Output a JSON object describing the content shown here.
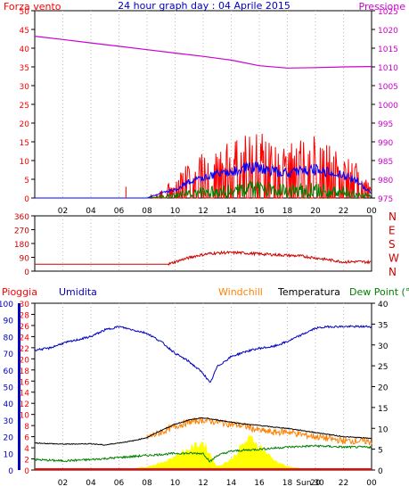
{
  "title": "24 hour graph day : 04 Aprile 2015",
  "colors": {
    "wind": "#ff0000",
    "gust": "#ff0000",
    "avgwind": "#0000ff",
    "windgreen": "#008000",
    "pressure": "#cc00cc",
    "direction": "#cc0000",
    "rain": "#ff0000",
    "humidity": "#0000c0",
    "windchill": "#ff8000",
    "temperature": "#000000",
    "dewpoint": "#008000",
    "solar": "#ffff00",
    "frame": "#000000",
    "grid": "#bbbbbb",
    "rainbar": "#ff0000"
  },
  "time_ticks": [
    "02",
    "04",
    "06",
    "08",
    "10",
    "12",
    "14",
    "16",
    "18",
    "20",
    "22",
    "00"
  ],
  "panel1": {
    "left_label": "Forza vento",
    "right_label": "Pressione",
    "left_ticks": [
      "0",
      "5",
      "10",
      "15",
      "20",
      "25",
      "30",
      "35",
      "40",
      "45",
      "50"
    ],
    "right_ticks": [
      "975",
      "980",
      "985",
      "990",
      "995",
      "1000",
      "1005",
      "1010",
      "1015",
      "1020",
      "1025"
    ]
  },
  "panel2": {
    "left_ticks": [
      "0",
      "90",
      "180",
      "270",
      "360"
    ],
    "right_labels": [
      "N",
      "W",
      "S",
      "E",
      "N"
    ]
  },
  "panel3": {
    "rain_label": "Pioggia",
    "humidity_label": "Umidita",
    "windchill_label": "Windchill",
    "temperature_label": "Temperatura",
    "dewpoint_label": "Dew Point (°C",
    "rain_ticks": [
      "0",
      "2",
      "4",
      "6",
      "8",
      "10",
      "12",
      "14",
      "16",
      "18",
      "20",
      "22",
      "24",
      "26",
      "28",
      "30"
    ],
    "humidity_ticks": [
      "0",
      "10",
      "20",
      "30",
      "40",
      "50",
      "60",
      "70",
      "80",
      "90",
      "100"
    ],
    "temp_ticks": [
      "0",
      "5",
      "10",
      "15",
      "20",
      "25",
      "30",
      "35",
      "40"
    ],
    "sun_marker": "Sun 30"
  },
  "chart_data": [
    {
      "type": "line",
      "title": "24 hour graph day : 04 Aprile 2015",
      "x_unit": "hour",
      "xlim": [
        0,
        24
      ],
      "ylim_left": [
        0,
        50
      ],
      "ylim_right": [
        975,
        1025
      ],
      "series": [
        {
          "name": "Forza vento",
          "axis": "left",
          "x": [
            0,
            6.5,
            8,
            9,
            10,
            11,
            12,
            13,
            14,
            15,
            16,
            17,
            18,
            19,
            20,
            21,
            22,
            23,
            23.5,
            24
          ],
          "values": [
            0,
            0,
            0,
            3,
            5,
            10,
            12,
            14,
            15,
            18,
            18,
            16,
            15,
            16,
            17,
            15,
            13,
            10,
            6,
            3
          ]
        },
        {
          "name": "Pressione",
          "axis": "right",
          "x": [
            0,
            2,
            4,
            6,
            8,
            10,
            12,
            14,
            16,
            18,
            20,
            22,
            24
          ],
          "values": [
            1018.2,
            1017.3,
            1016.4,
            1015.5,
            1014.6,
            1013.7,
            1012.8,
            1011.8,
            1010.3,
            1009.7,
            1009.8,
            1010,
            1010.1
          ]
        }
      ]
    },
    {
      "type": "line",
      "xlim": [
        0,
        24
      ],
      "ylim": [
        0,
        360
      ],
      "series": [
        {
          "x": [
            0,
            2,
            4,
            6,
            8,
            9.5,
            10.5,
            11.5,
            12.5,
            13.5,
            14.5,
            16,
            17.5,
            19,
            20.5,
            22,
            23,
            24
          ],
          "values": [
            45,
            45,
            45,
            45,
            45,
            45,
            75,
            100,
            115,
            120,
            120,
            112,
            105,
            98,
            80,
            60,
            62,
            58
          ]
        }
      ]
    },
    {
      "type": "line",
      "xlim": [
        0,
        24
      ],
      "ylim_rain": [
        0,
        30
      ],
      "ylim_humidity": [
        0,
        100
      ],
      "ylim_temperature": [
        0,
        40
      ],
      "series": [
        {
          "name": "Umidita",
          "axis": "humidity",
          "x": [
            0,
            1,
            2,
            3,
            4,
            5,
            6,
            7,
            8,
            9,
            10,
            11,
            12,
            12.5,
            13,
            14,
            15,
            16,
            17,
            18,
            19,
            20,
            21,
            22,
            23,
            24
          ],
          "values": [
            72,
            73,
            76,
            78,
            80,
            84,
            86,
            84,
            82,
            77,
            70,
            65,
            58,
            52,
            62,
            68,
            71,
            73,
            74,
            77,
            81,
            85,
            86,
            86,
            86,
            86
          ]
        },
        {
          "name": "Temperatura",
          "axis": "temperature",
          "x": [
            0,
            2,
            4,
            5,
            6,
            7,
            8,
            9,
            10,
            11,
            12,
            13,
            14,
            15,
            16,
            17,
            18,
            19,
            20,
            21,
            22,
            23,
            24
          ],
          "values": [
            6.5,
            6.2,
            6.3,
            6,
            6.5,
            7,
            7.8,
            9.5,
            11,
            12,
            12.5,
            12,
            11.5,
            11,
            10.7,
            10.3,
            10,
            9.5,
            9,
            8.5,
            8,
            7.8,
            7.6
          ]
        },
        {
          "name": "Windchill",
          "axis": "temperature",
          "x": [
            8,
            9,
            10,
            11,
            12,
            13,
            14,
            15,
            16,
            17,
            18,
            19,
            20,
            21,
            22,
            23,
            24
          ],
          "values": [
            7.8,
            9,
            10.5,
            11.5,
            12,
            11.5,
            11,
            10.5,
            9.5,
            9,
            9.2,
            8.5,
            8,
            7.5,
            7,
            7,
            6.8
          ]
        },
        {
          "name": "Dew Point (°C",
          "axis": "temperature",
          "x": [
            0,
            2,
            4,
            6,
            8,
            10,
            12,
            12.5,
            13,
            14,
            16,
            18,
            20,
            22,
            24
          ],
          "values": [
            2.5,
            2.2,
            2.5,
            3,
            3.5,
            4,
            4,
            2,
            3.5,
            4.5,
            5,
            5.5,
            5.8,
            5.5,
            5.5
          ]
        },
        {
          "name": "solar",
          "axis": "temperature",
          "x": [
            6,
            7,
            8,
            9,
            10,
            11,
            12,
            13,
            14,
            15,
            15.5,
            16,
            17,
            18,
            19,
            20
          ],
          "values": [
            0,
            0.5,
            1,
            2,
            4,
            6,
            8,
            1,
            3,
            8,
            9,
            7,
            3,
            1,
            0.5,
            0
          ]
        },
        {
          "name": "Pioggia",
          "axis": "rain",
          "x": [
            0,
            24
          ],
          "values": [
            0,
            0
          ]
        }
      ]
    }
  ]
}
